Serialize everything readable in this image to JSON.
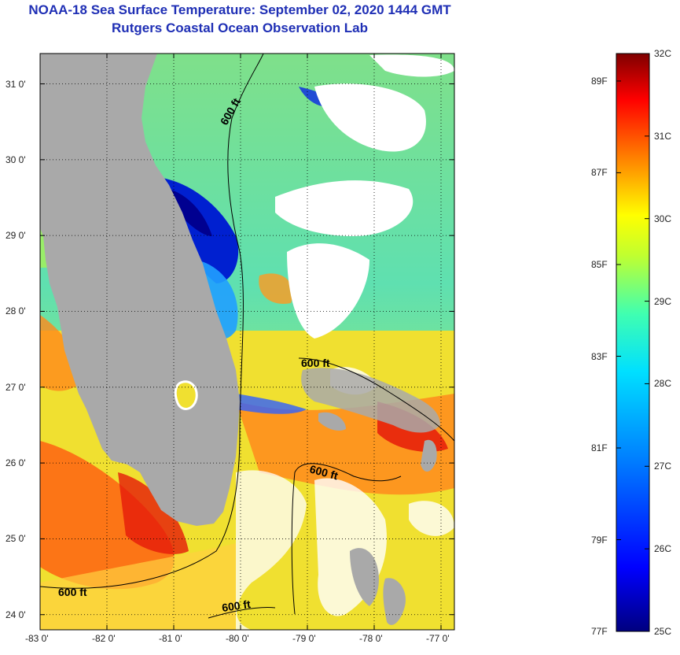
{
  "header": {
    "title": "NOAA-18 Sea Surface Temperature:  September 02, 2020 1444 GMT",
    "subtitle": "Rutgers Coastal Ocean Observation Lab"
  },
  "map": {
    "lon_range": [
      -83,
      -76.8
    ],
    "lat_range": [
      23.8,
      31.4
    ],
    "lat_ticks": [
      {
        "value": 24,
        "label": "24 0'"
      },
      {
        "value": 25,
        "label": "25 0'"
      },
      {
        "value": 26,
        "label": "26 0'"
      },
      {
        "value": 27,
        "label": "27 0'"
      },
      {
        "value": 28,
        "label": "28 0'"
      },
      {
        "value": 29,
        "label": "29 0'"
      },
      {
        "value": 30,
        "label": "30 0'"
      },
      {
        "value": 31,
        "label": "31 0'"
      }
    ],
    "lon_ticks": [
      {
        "value": -83,
        "label": "-83 0'"
      },
      {
        "value": -82,
        "label": "-82 0'"
      },
      {
        "value": -81,
        "label": "-81 0'"
      },
      {
        "value": -80,
        "label": "-80 0'"
      },
      {
        "value": -79,
        "label": "-79 0'"
      },
      {
        "value": -78,
        "label": "-78 0'"
      },
      {
        "value": -77,
        "label": "-77 0'"
      }
    ],
    "contour_labels": [
      "600 ft",
      "600 ft",
      "600 ft",
      "600 ft",
      "600 ft"
    ],
    "land_color": "#a9a9a9",
    "cloud_color": "#ffffff"
  },
  "colorbar": {
    "range_c": [
      25,
      32
    ],
    "celsius_labels": [
      {
        "value": 32,
        "label": "32C"
      },
      {
        "value": 31,
        "label": "31C"
      },
      {
        "value": 30,
        "label": "30C"
      },
      {
        "value": 29,
        "label": "29C"
      },
      {
        "value": 28,
        "label": "28C"
      },
      {
        "value": 27,
        "label": "27C"
      },
      {
        "value": 26,
        "label": "26C"
      },
      {
        "value": 25,
        "label": "25C"
      }
    ],
    "fahrenheit_labels": [
      {
        "value_c": 31.667,
        "label": "89F"
      },
      {
        "value_c": 30.556,
        "label": "87F"
      },
      {
        "value_c": 29.444,
        "label": "85F"
      },
      {
        "value_c": 28.333,
        "label": "83F"
      },
      {
        "value_c": 27.222,
        "label": "81F"
      },
      {
        "value_c": 26.111,
        "label": "79F"
      },
      {
        "value_c": 25.0,
        "label": "77F"
      }
    ],
    "stops": [
      "#00007f",
      "#0000ff",
      "#007fff",
      "#00ffff",
      "#7fff7f",
      "#ffff00",
      "#ff7f00",
      "#ff0000",
      "#7f0000"
    ]
  }
}
